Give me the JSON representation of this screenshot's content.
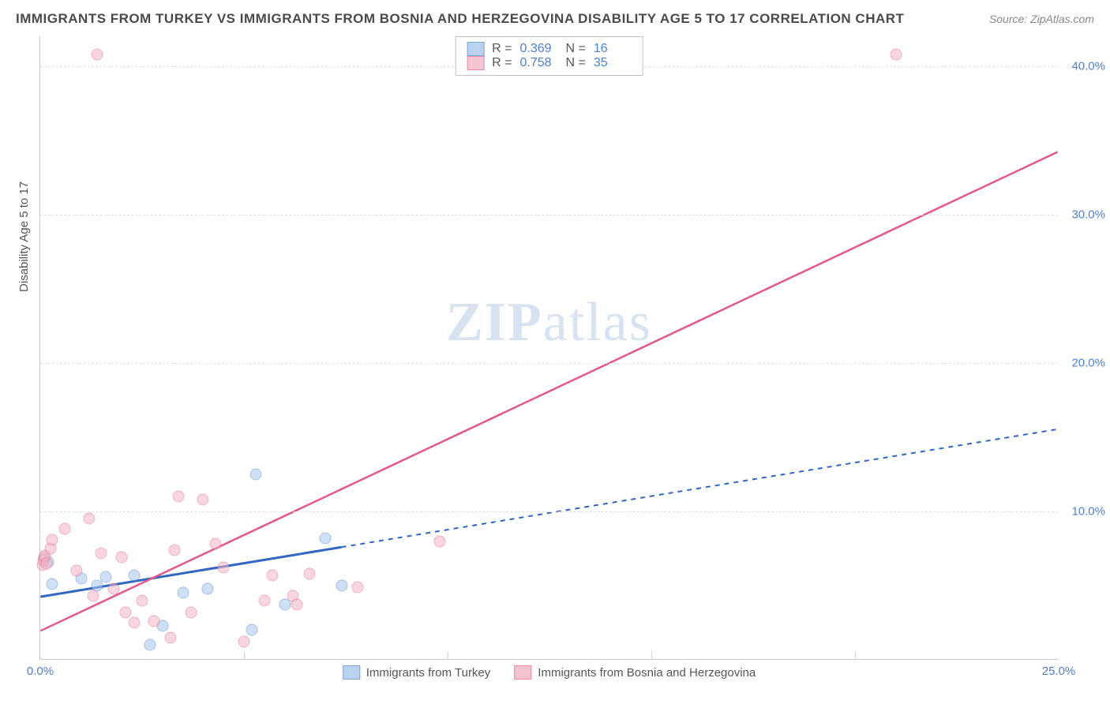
{
  "title": "IMMIGRANTS FROM TURKEY VS IMMIGRANTS FROM BOSNIA AND HERZEGOVINA DISABILITY AGE 5 TO 17 CORRELATION CHART",
  "source": "Source: ZipAtlas.com",
  "ylabel": "Disability Age 5 to 17",
  "watermark_a": "ZIP",
  "watermark_b": "atlas",
  "chart": {
    "type": "scatter",
    "background_color": "#ffffff",
    "grid_color": "#e0e0e0",
    "axis_color": "#c8c8c8",
    "tick_color": "#4a7fd6",
    "xlim": [
      0,
      25
    ],
    "ylim": [
      0,
      42
    ],
    "xticks": [
      {
        "v": 0,
        "label": "0.0%"
      },
      {
        "v": 25,
        "label": "25.0%"
      }
    ],
    "yticks": [
      {
        "v": 10,
        "label": "10.0%"
      },
      {
        "v": 20,
        "label": "20.0%"
      },
      {
        "v": 30,
        "label": "30.0%"
      },
      {
        "v": 40,
        "label": "40.0%"
      }
    ],
    "x_minor_ticks": [
      5,
      10,
      15,
      20
    ],
    "series": [
      {
        "name": "Immigrants from Turkey",
        "fill": "#a8c8ec",
        "stroke": "#5a8fd0",
        "fill_opacity": 0.55,
        "marker_size": 15,
        "R": "0.369",
        "N": "16",
        "trend": {
          "x1": 0,
          "y1": 4.2,
          "x2": 25,
          "y2": 15.5,
          "solid_until_x": 7.4,
          "color": "#2f66c4",
          "width": 3,
          "dash": "6,6"
        },
        "points": [
          {
            "x": 0.1,
            "y": 6.8
          },
          {
            "x": 0.2,
            "y": 6.6
          },
          {
            "x": 0.3,
            "y": 5.1
          },
          {
            "x": 1.0,
            "y": 5.5
          },
          {
            "x": 1.4,
            "y": 5.0
          },
          {
            "x": 1.6,
            "y": 5.6
          },
          {
            "x": 2.3,
            "y": 5.7
          },
          {
            "x": 2.7,
            "y": 1.0
          },
          {
            "x": 3.0,
            "y": 2.3
          },
          {
            "x": 3.5,
            "y": 4.5
          },
          {
            "x": 4.1,
            "y": 4.8
          },
          {
            "x": 5.2,
            "y": 2.0
          },
          {
            "x": 5.3,
            "y": 12.5
          },
          {
            "x": 6.0,
            "y": 3.7
          },
          {
            "x": 7.0,
            "y": 8.2
          },
          {
            "x": 7.4,
            "y": 5.0
          }
        ]
      },
      {
        "name": "Immigrants from Bosnia and Herzegovina",
        "fill": "#f2b6c6",
        "stroke": "#e36f93",
        "fill_opacity": 0.55,
        "marker_size": 15,
        "R": "0.758",
        "N": "35",
        "trend": {
          "x1": 0,
          "y1": 1.9,
          "x2": 25,
          "y2": 34.2,
          "solid_until_x": 25,
          "color": "#e05a85",
          "width": 2.5,
          "dash": ""
        },
        "points": [
          {
            "x": 0.05,
            "y": 6.4
          },
          {
            "x": 0.08,
            "y": 6.7
          },
          {
            "x": 0.1,
            "y": 6.9
          },
          {
            "x": 0.12,
            "y": 7.0
          },
          {
            "x": 0.15,
            "y": 6.5
          },
          {
            "x": 0.25,
            "y": 7.5
          },
          {
            "x": 0.3,
            "y": 8.1
          },
          {
            "x": 0.6,
            "y": 8.8
          },
          {
            "x": 0.9,
            "y": 6.0
          },
          {
            "x": 1.2,
            "y": 9.5
          },
          {
            "x": 1.3,
            "y": 4.3
          },
          {
            "x": 1.5,
            "y": 7.2
          },
          {
            "x": 1.8,
            "y": 4.8
          },
          {
            "x": 2.0,
            "y": 6.9
          },
          {
            "x": 2.1,
            "y": 3.2
          },
          {
            "x": 2.3,
            "y": 2.5
          },
          {
            "x": 2.5,
            "y": 4.0
          },
          {
            "x": 2.8,
            "y": 2.6
          },
          {
            "x": 3.2,
            "y": 1.5
          },
          {
            "x": 3.3,
            "y": 7.4
          },
          {
            "x": 3.4,
            "y": 11.0
          },
          {
            "x": 3.7,
            "y": 3.2
          },
          {
            "x": 4.0,
            "y": 10.8
          },
          {
            "x": 4.3,
            "y": 7.8
          },
          {
            "x": 4.5,
            "y": 6.2
          },
          {
            "x": 5.0,
            "y": 1.2
          },
          {
            "x": 5.5,
            "y": 4.0
          },
          {
            "x": 5.7,
            "y": 5.7
          },
          {
            "x": 6.2,
            "y": 4.3
          },
          {
            "x": 6.3,
            "y": 3.7
          },
          {
            "x": 6.6,
            "y": 5.8
          },
          {
            "x": 7.8,
            "y": 4.9
          },
          {
            "x": 9.8,
            "y": 8.0
          },
          {
            "x": 1.4,
            "y": 40.8
          },
          {
            "x": 21.0,
            "y": 40.8
          }
        ]
      }
    ]
  },
  "legend_top": {
    "r_label": "R =",
    "n_label": "N ="
  }
}
